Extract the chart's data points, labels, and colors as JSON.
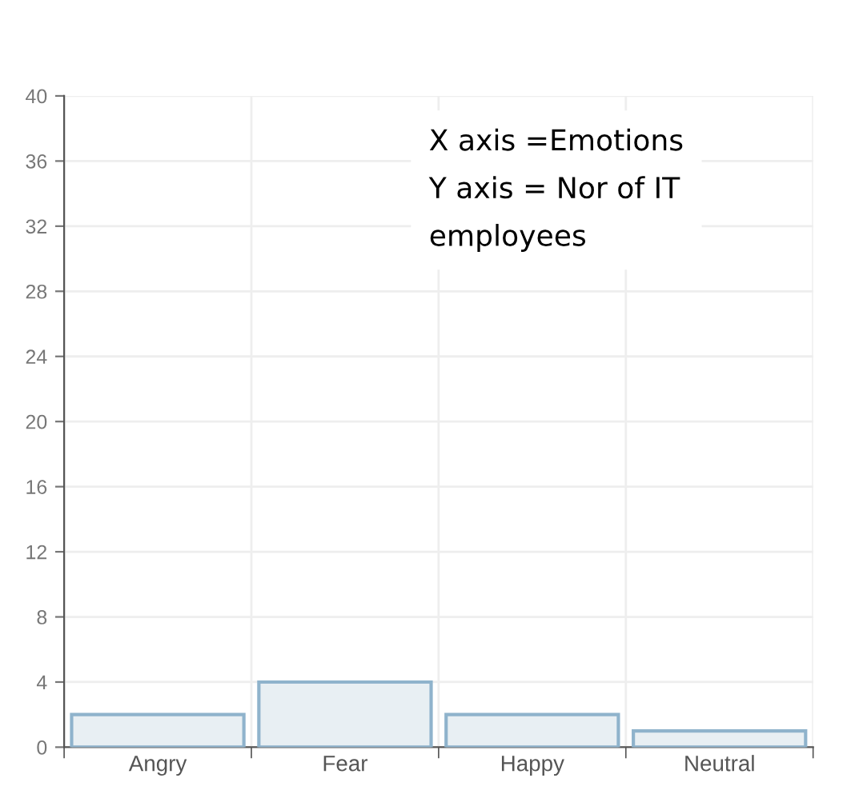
{
  "chart_data": {
    "type": "bar",
    "categories": [
      "Angry",
      "Fear",
      "Happy",
      "Neutral"
    ],
    "values": [
      2,
      4,
      2,
      1
    ],
    "color": "#e8eff3",
    "ylim": [
      0,
      40
    ],
    "yticks": [
      0,
      4,
      8,
      12,
      16,
      20,
      24,
      28,
      32,
      36,
      40
    ],
    "grid": true,
    "annotations": [
      "X axis =Emotions\nY axis = Nor of IT\nemployees"
    ]
  }
}
